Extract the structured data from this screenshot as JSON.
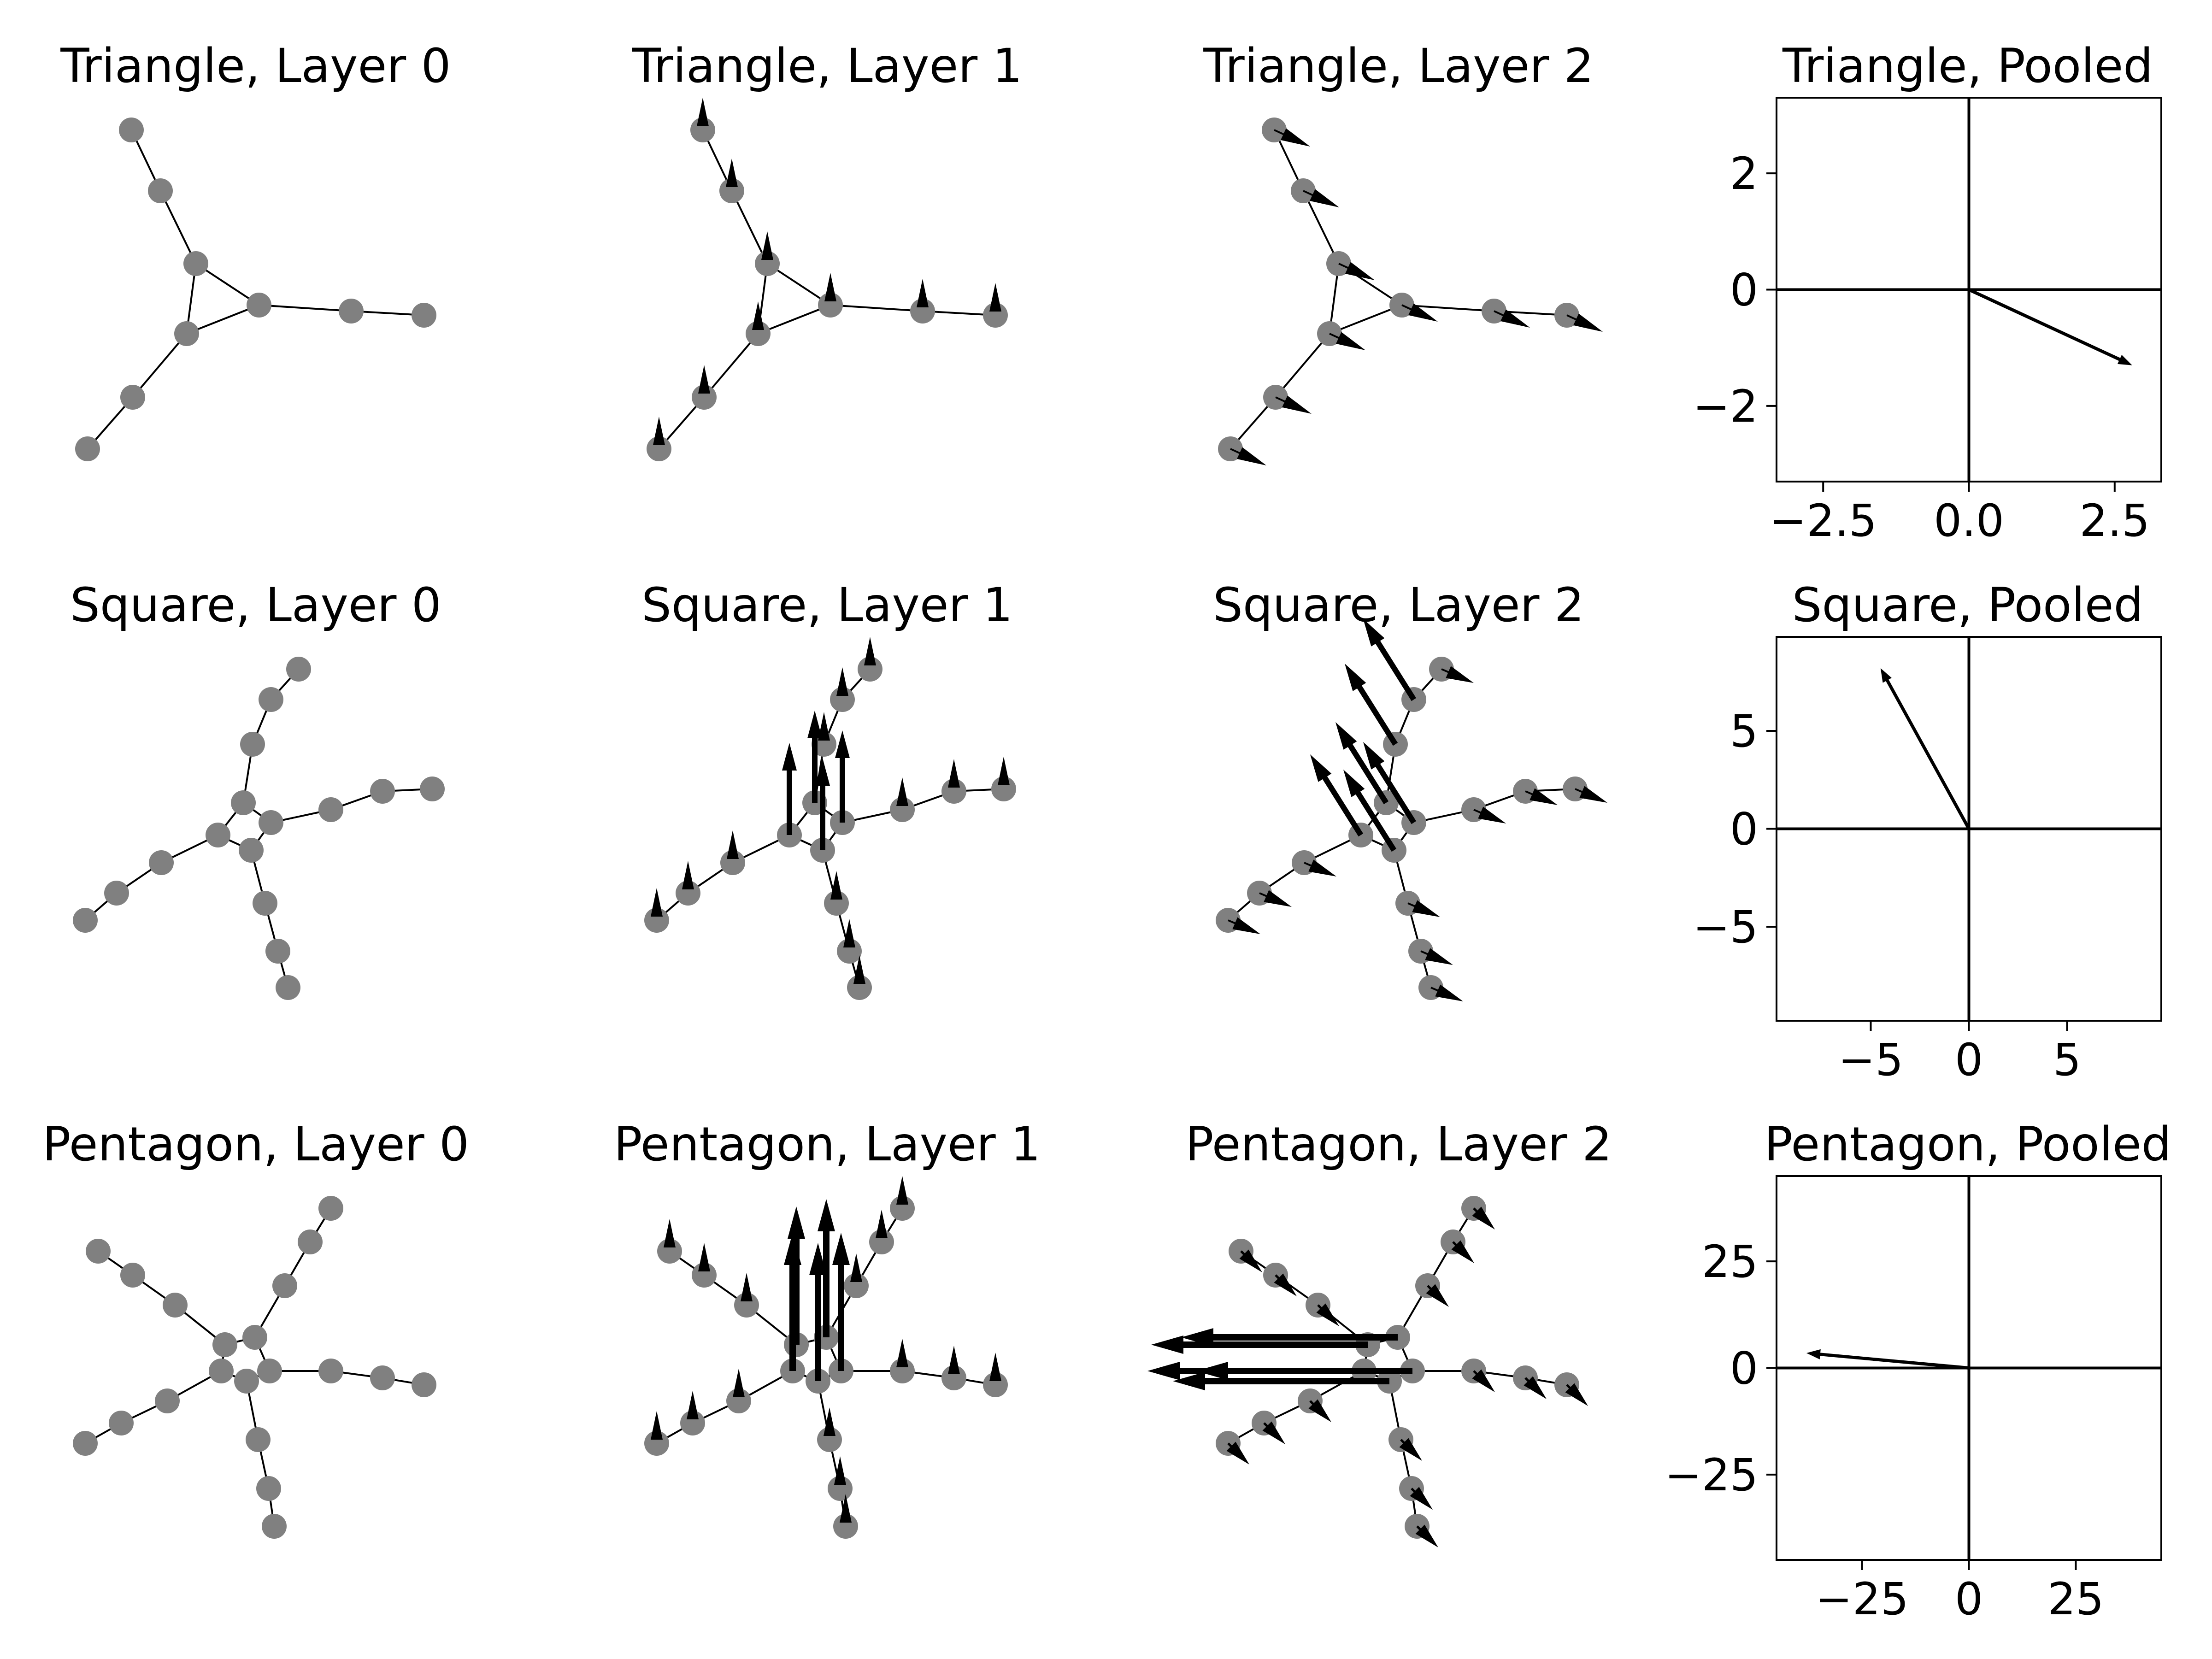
{
  "chart_data": [
    {
      "type": "graph",
      "title": "Triangle, Layer 0",
      "row": 0,
      "col": 0,
      "graph": "triangle",
      "layer": 0,
      "arrows": "none"
    },
    {
      "type": "graph",
      "title": "Triangle, Layer 1",
      "row": 0,
      "col": 1,
      "graph": "triangle",
      "layer": 1,
      "arrows": "small-up"
    },
    {
      "type": "graph",
      "title": "Triangle, Layer 2",
      "row": 0,
      "col": 2,
      "graph": "triangle",
      "layer": 2,
      "arrows": "small-right-down"
    },
    {
      "type": "vector",
      "title": "Triangle, Pooled",
      "row": 0,
      "col": 3,
      "xlim": [
        -3.3,
        3.3
      ],
      "ylim": [
        -3.3,
        3.3
      ],
      "xticks": [
        -2.5,
        0.0,
        2.5
      ],
      "xtick_labels": [
        "−2.5",
        "0.0",
        "2.5"
      ],
      "yticks": [
        2,
        0,
        -2
      ],
      "ytick_labels": [
        "2",
        "0",
        "−2"
      ],
      "vector": [
        2.8,
        -1.3
      ]
    },
    {
      "type": "graph",
      "title": "Square, Layer 0",
      "row": 1,
      "col": 0,
      "graph": "square",
      "layer": 0,
      "arrows": "none"
    },
    {
      "type": "graph",
      "title": "Square, Layer 1",
      "row": 1,
      "col": 1,
      "graph": "square",
      "layer": 1,
      "arrows": "up-center"
    },
    {
      "type": "graph",
      "title": "Square, Layer 2",
      "row": 1,
      "col": 2,
      "graph": "square",
      "layer": 2,
      "arrows": "up-left-center"
    },
    {
      "type": "vector",
      "title": "Square, Pooled",
      "row": 1,
      "col": 3,
      "xlim": [
        -9.8,
        9.8
      ],
      "ylim": [
        -9.8,
        9.8
      ],
      "xticks": [
        -5,
        0,
        5
      ],
      "xtick_labels": [
        "−5",
        "0",
        "5"
      ],
      "yticks": [
        5,
        0,
        -5
      ],
      "ytick_labels": [
        "5",
        "0",
        "−5"
      ],
      "vector": [
        -4.5,
        8.2
      ]
    },
    {
      "type": "graph",
      "title": "Pentagon, Layer 0",
      "row": 2,
      "col": 0,
      "graph": "pentagon",
      "layer": 0,
      "arrows": "none"
    },
    {
      "type": "graph",
      "title": "Pentagon, Layer 1",
      "row": 2,
      "col": 1,
      "graph": "pentagon",
      "layer": 1,
      "arrows": "long-up-center"
    },
    {
      "type": "graph",
      "title": "Pentagon, Layer 2",
      "row": 2,
      "col": 2,
      "graph": "pentagon",
      "layer": 2,
      "arrows": "long-left-center"
    },
    {
      "type": "vector",
      "title": "Pentagon, Pooled",
      "row": 2,
      "col": 3,
      "xlim": [
        -45,
        45
      ],
      "ylim": [
        -45,
        45
      ],
      "xticks": [
        -25,
        0,
        25
      ],
      "xtick_labels": [
        "−25",
        "0",
        "25"
      ],
      "yticks": [
        25,
        0,
        -25
      ],
      "ytick_labels": [
        "25",
        "0",
        "−25"
      ],
      "vector": [
        -38,
        3.5
      ]
    }
  ]
}
